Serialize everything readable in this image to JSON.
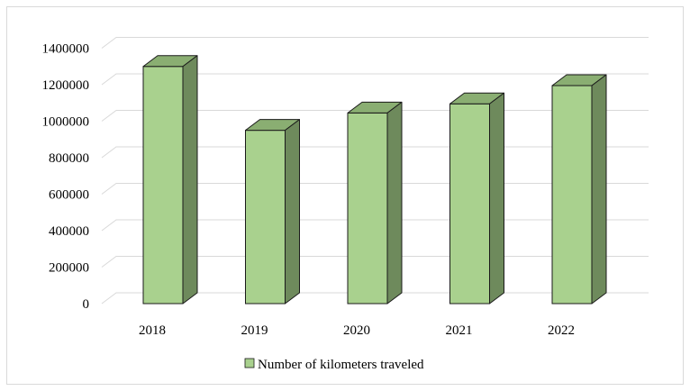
{
  "chart_data": {
    "type": "bar",
    "style": "3d-column",
    "categories": [
      "2018",
      "2019",
      "2020",
      "2021",
      "2022"
    ],
    "series": [
      {
        "name": "Number of kilometers traveled",
        "values": [
          1300000,
          950000,
          1045000,
          1095000,
          1195000
        ]
      }
    ],
    "ylim": [
      0,
      1400000
    ],
    "yticks": [
      0,
      200000,
      400000,
      600000,
      800000,
      1000000,
      1200000,
      1400000
    ],
    "grid": true,
    "legend_position": "bottom",
    "colors": {
      "bar_front": "#a9d18e",
      "bar_top": "#8aae72",
      "bar_side": "#6e8a5c",
      "outline": "#1a1a1a",
      "gridline": "#d9d9d9",
      "frame": "#d9d9d9"
    }
  }
}
